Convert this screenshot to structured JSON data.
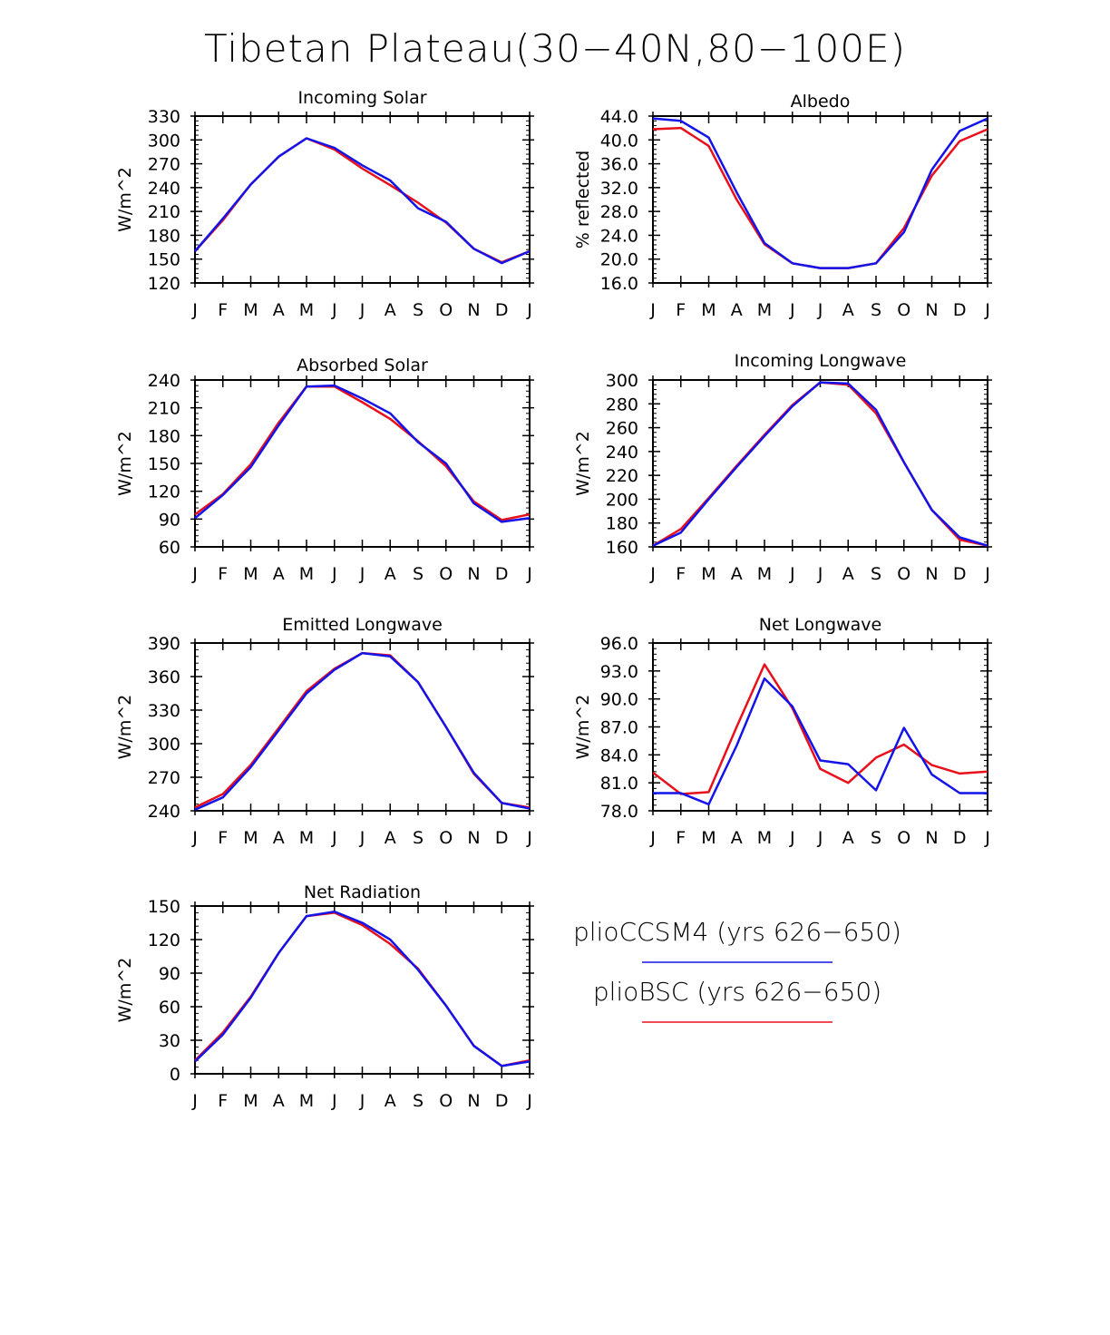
{
  "title": "Tibetan Plateau(30−40N,80−100E)",
  "colors": {
    "pliobsc": "#e8101a",
    "pliocсsm4_unused": "",
    "pliocсsm4": "#1414e8"
  },
  "legend": [
    {
      "key": "pliocсsm4",
      "label": "plioCCSM4 (yrs 626−650)",
      "color": "#1414e8"
    },
    {
      "key": "pliobsc",
      "label": "plioBSC (yrs 626−650)",
      "color": "#e8101a"
    }
  ],
  "chart_data": [
    {
      "type": "line",
      "title": "Incoming Solar",
      "ylabel": "W/m^2",
      "categories": [
        "J",
        "F",
        "M",
        "A",
        "M",
        "J",
        "J",
        "A",
        "S",
        "O",
        "N",
        "D",
        "J"
      ],
      "ylim": [
        120,
        330
      ],
      "yticks": [
        "120",
        "150",
        "180",
        "210",
        "240",
        "270",
        "300",
        "330"
      ],
      "series": [
        {
          "name": "plioBSC (yrs 626−650)",
          "values": [
            160,
            199,
            244,
            279,
            302,
            288,
            264,
            243,
            221,
            196,
            163,
            146,
            160
          ]
        },
        {
          "name": "plioCCSM4 (yrs 626−650)",
          "values": [
            160,
            201,
            244,
            279,
            302,
            290,
            268,
            249,
            214,
            197,
            163,
            145,
            160
          ]
        }
      ]
    },
    {
      "type": "line",
      "title": "Albedo",
      "ylabel": "% reflected",
      "categories": [
        "J",
        "F",
        "M",
        "A",
        "M",
        "J",
        "J",
        "A",
        "S",
        "O",
        "N",
        "D",
        "J"
      ],
      "ylim": [
        16,
        44
      ],
      "yticks": [
        "16.0",
        "20.0",
        "24.0",
        "28.0",
        "32.0",
        "36.0",
        "40.0",
        "44.0"
      ],
      "series": [
        {
          "name": "plioBSC (yrs 626−650)",
          "values": [
            41.8,
            42.0,
            39.0,
            30.0,
            22.5,
            19.3,
            18.5,
            18.5,
            19.3,
            25.2,
            34.0,
            39.8,
            41.8
          ]
        },
        {
          "name": "plioCCSM4 (yrs 626−650)",
          "values": [
            43.6,
            43.2,
            40.4,
            31.2,
            22.7,
            19.3,
            18.5,
            18.5,
            19.3,
            24.5,
            35.0,
            41.5,
            43.6
          ]
        }
      ]
    },
    {
      "type": "line",
      "title": "Absorbed Solar",
      "ylabel": "W/m^2",
      "categories": [
        "J",
        "F",
        "M",
        "A",
        "M",
        "J",
        "J",
        "A",
        "S",
        "O",
        "N",
        "D",
        "J"
      ],
      "ylim": [
        60,
        240
      ],
      "yticks": [
        "60",
        "90",
        "120",
        "150",
        "180",
        "210",
        "240"
      ],
      "series": [
        {
          "name": "plioBSC (yrs 626−650)",
          "values": [
            95,
            117,
            149,
            194,
            233,
            233,
            216,
            198,
            174,
            147,
            109,
            89,
            95
          ]
        },
        {
          "name": "plioCCSM4 (yrs 626−650)",
          "values": [
            91,
            116,
            146,
            191,
            233,
            234,
            220,
            204,
            173,
            150,
            107,
            87,
            91
          ]
        }
      ]
    },
    {
      "type": "line",
      "title": "Incoming Longwave",
      "ylabel": "W/m^2",
      "categories": [
        "J",
        "F",
        "M",
        "A",
        "M",
        "J",
        "J",
        "A",
        "S",
        "O",
        "N",
        "D",
        "J"
      ],
      "ylim": [
        160,
        300
      ],
      "yticks": [
        "160",
        "180",
        "200",
        "220",
        "240",
        "260",
        "280",
        "300"
      ],
      "series": [
        {
          "name": "plioBSC (yrs 626−650)",
          "values": [
            161,
            175,
            201,
            228,
            254,
            279,
            298,
            296,
            272,
            231,
            191,
            166,
            161
          ]
        },
        {
          "name": "plioCCSM4 (yrs 626−650)",
          "values": [
            161,
            172,
            200,
            227,
            253,
            278,
            298,
            297,
            275,
            231,
            191,
            168,
            161
          ]
        }
      ]
    },
    {
      "type": "line",
      "title": "Emitted Longwave",
      "ylabel": "W/m^2",
      "categories": [
        "J",
        "F",
        "M",
        "A",
        "M",
        "J",
        "J",
        "A",
        "S",
        "O",
        "N",
        "D",
        "J"
      ],
      "ylim": [
        240,
        390
      ],
      "yticks": [
        "240",
        "270",
        "300",
        "330",
        "360",
        "390"
      ],
      "series": [
        {
          "name": "plioBSC (yrs 626−650)",
          "values": [
            243,
            255,
            281,
            314,
            347,
            367,
            381,
            379,
            355,
            315,
            273,
            247,
            243
          ]
        },
        {
          "name": "plioCCSM4 (yrs 626−650)",
          "values": [
            241,
            252,
            279,
            312,
            345,
            366,
            381,
            378,
            355,
            315,
            274,
            247,
            242
          ]
        }
      ]
    },
    {
      "type": "line",
      "title": "Net Longwave",
      "ylabel": "W/m^2",
      "categories": [
        "J",
        "F",
        "M",
        "A",
        "M",
        "J",
        "J",
        "A",
        "S",
        "O",
        "N",
        "D",
        "J"
      ],
      "ylim": [
        78,
        96
      ],
      "yticks": [
        "78.0",
        "81.0",
        "84.0",
        "87.0",
        "90.0",
        "93.0",
        "96.0"
      ],
      "series": [
        {
          "name": "plioBSC (yrs 626−650)",
          "values": [
            82.1,
            79.8,
            80.0,
            87.0,
            93.7,
            89.0,
            82.5,
            81.0,
            83.7,
            85.1,
            82.9,
            82.0,
            82.2
          ]
        },
        {
          "name": "plioCCSM4 (yrs 626−650)",
          "values": [
            79.9,
            79.9,
            78.7,
            85.0,
            92.2,
            89.2,
            83.4,
            83.0,
            80.2,
            86.9,
            81.9,
            79.9,
            79.9
          ]
        }
      ]
    },
    {
      "type": "line",
      "title": "Net Radiation",
      "ylabel": "W/m^2",
      "categories": [
        "J",
        "F",
        "M",
        "A",
        "M",
        "J",
        "J",
        "A",
        "S",
        "O",
        "N",
        "D",
        "J"
      ],
      "ylim": [
        0,
        150
      ],
      "yticks": [
        "0",
        "30",
        "60",
        "90",
        "120",
        "150"
      ],
      "series": [
        {
          "name": "plioBSC (yrs 626−650)",
          "values": [
            12,
            37,
            69,
            108,
            141,
            144,
            133,
            116,
            94,
            61,
            25,
            7,
            12
          ]
        },
        {
          "name": "plioCCSM4 (yrs 626−650)",
          "values": [
            11,
            35,
            68,
            108,
            141,
            145,
            135,
            120,
            93,
            61,
            25,
            7,
            11
          ]
        }
      ]
    }
  ]
}
